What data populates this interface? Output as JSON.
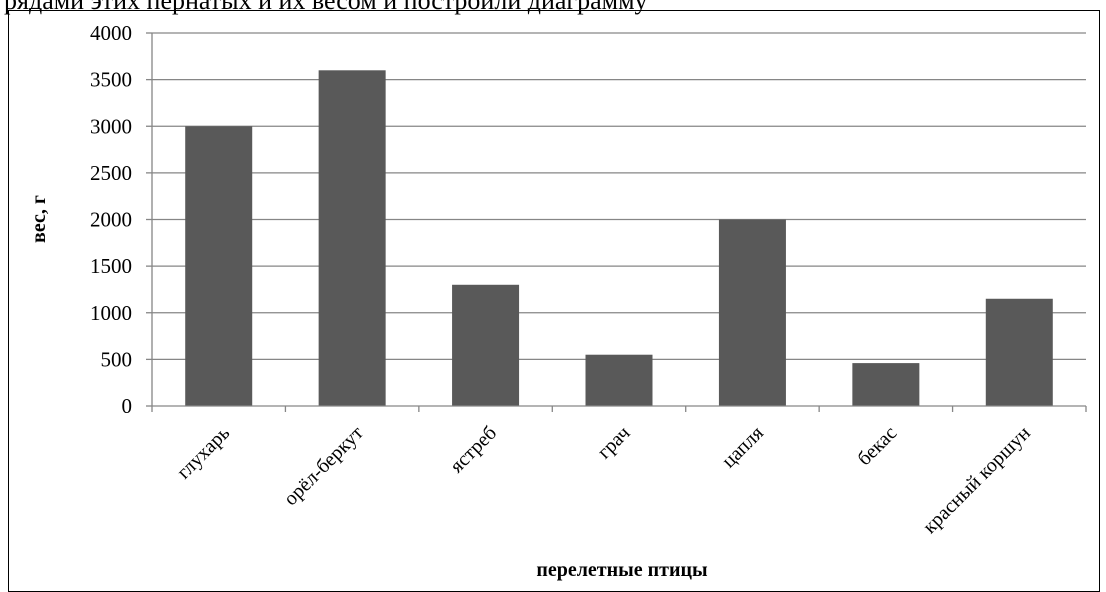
{
  "page": {
    "top_text": "рядами этих пернатых и их весом и построили диаграмму"
  },
  "chart_data": {
    "type": "bar",
    "title": "",
    "xlabel": "перелетные птицы",
    "ylabel": "вес, г",
    "categories": [
      "глухарь",
      "орёл-беркут",
      "ястреб",
      "грач",
      "цапля",
      "бекас",
      "красный коршун"
    ],
    "values": [
      3000,
      3600,
      1300,
      550,
      2000,
      460,
      1150
    ],
    "ylim": [
      0,
      4000
    ],
    "yticks": [
      0,
      500,
      1000,
      1500,
      2000,
      2500,
      3000,
      3500,
      4000
    ],
    "grid": true,
    "legend": "none",
    "bar_color": "#595959",
    "grid_color": "#868686"
  }
}
